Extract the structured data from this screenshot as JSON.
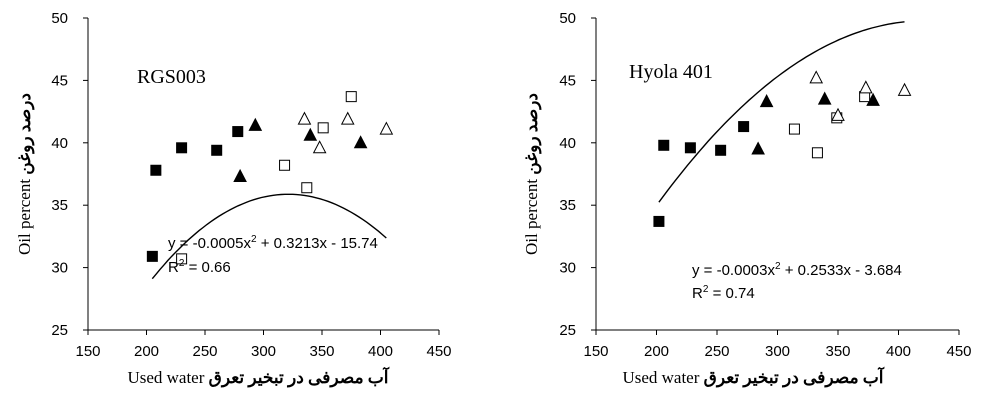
{
  "chart_data": [
    {
      "type": "scatter",
      "label": "RGS003",
      "xlabel_en": "Used water",
      "xlabel_fa": "آب مصرفی در تبخیر تعرق",
      "ylabel_en": "Oil percent",
      "ylabel_fa": "درصد روغن",
      "xlim": [
        150,
        450
      ],
      "ylim": [
        25,
        50
      ],
      "xticks": [
        "150",
        "200",
        "250",
        "300",
        "350",
        "400",
        "450"
      ],
      "yticks": [
        "25",
        "30",
        "35",
        "40",
        "45",
        "50"
      ],
      "equation_prefix": "y = -0.0005x",
      "equation_sup": "2",
      "equation_suffix": " + 0.3213x - 15.74",
      "r2_prefix": "R",
      "r2_sup": "2",
      "r2_suffix": " = 0.66",
      "fit": {
        "a": -0.0005,
        "b": 0.3213,
        "c": -15.74,
        "x_range": [
          205,
          405
        ]
      },
      "series": [
        {
          "marker": "filled-square",
          "points": [
            [
              205,
              30.9
            ],
            [
              208,
              37.8
            ],
            [
              230,
              39.6
            ],
            [
              260,
              39.4
            ],
            [
              278,
              40.9
            ]
          ]
        },
        {
          "marker": "filled-triangle",
          "points": [
            [
              280,
              37.3
            ],
            [
              293,
              41.4
            ],
            [
              340,
              40.6
            ],
            [
              383,
              40.0
            ]
          ]
        },
        {
          "marker": "open-square",
          "points": [
            [
              230,
              30.7
            ],
            [
              318,
              38.2
            ],
            [
              337,
              36.4
            ],
            [
              351,
              41.2
            ],
            [
              375,
              43.7
            ]
          ]
        },
        {
          "marker": "open-triangle",
          "points": [
            [
              335,
              41.9
            ],
            [
              348,
              39.6
            ],
            [
              372,
              41.9
            ],
            [
              405,
              41.1
            ]
          ]
        }
      ]
    },
    {
      "type": "scatter",
      "label": "Hyola 401",
      "xlabel_en": "Used water",
      "xlabel_fa": "آب مصرفی در تبخیر تعرق",
      "ylabel_en": "Oil percent",
      "ylabel_fa": "درصد روغن",
      "xlim": [
        150,
        450
      ],
      "ylim": [
        25,
        50
      ],
      "xticks": [
        "150",
        "200",
        "250",
        "300",
        "350",
        "400",
        "450"
      ],
      "yticks": [
        "25",
        "30",
        "35",
        "40",
        "45",
        "50"
      ],
      "equation_prefix": "y = -0.0003x",
      "equation_sup": "2",
      "equation_suffix": " + 0.2533x - 3.684",
      "r2_prefix": "R",
      "r2_sup": "2",
      "r2_suffix": " = 0.74",
      "fit": {
        "a": -0.0003,
        "b": 0.2533,
        "c": -3.684,
        "x_range": [
          202,
          405
        ]
      },
      "series": [
        {
          "marker": "filled-square",
          "points": [
            [
              202,
              33.7
            ],
            [
              206,
              39.8
            ],
            [
              228,
              39.6
            ],
            [
              253,
              39.4
            ],
            [
              272,
              41.3
            ]
          ]
        },
        {
          "marker": "filled-triangle",
          "points": [
            [
              284,
              39.5
            ],
            [
              291,
              43.3
            ],
            [
              339,
              43.5
            ],
            [
              379,
              43.4
            ]
          ]
        },
        {
          "marker": "open-square",
          "points": [
            [
              314,
              41.1
            ],
            [
              333,
              39.2
            ],
            [
              349,
              42.0
            ],
            [
              372,
              43.7
            ]
          ]
        },
        {
          "marker": "open-triangle",
          "points": [
            [
              332,
              45.2
            ],
            [
              350,
              42.2
            ],
            [
              373,
              44.4
            ],
            [
              405,
              44.2
            ]
          ]
        }
      ]
    }
  ]
}
